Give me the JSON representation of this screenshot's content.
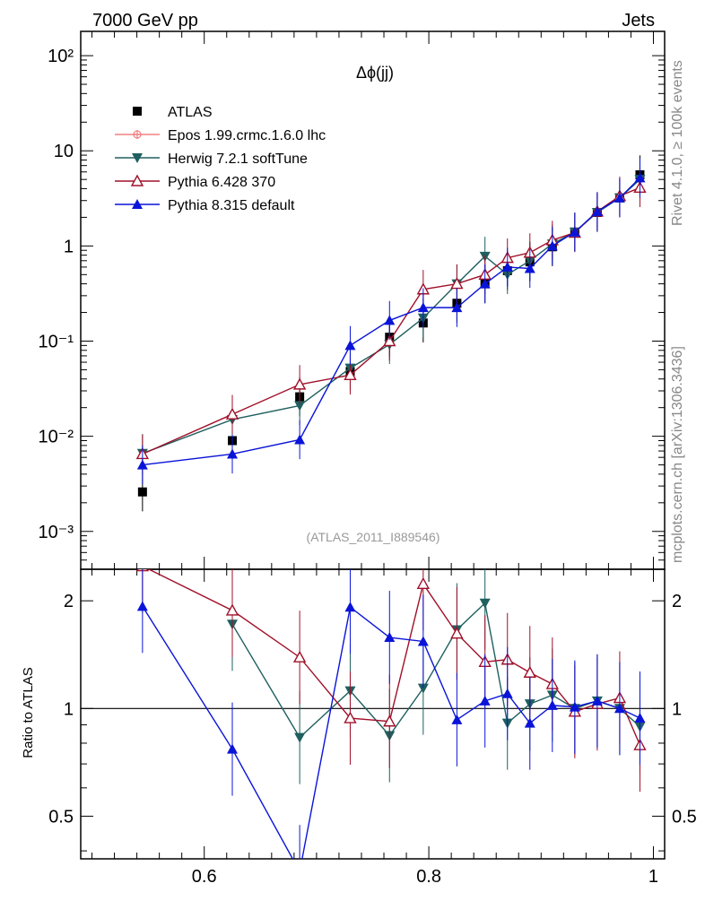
{
  "header": {
    "energy_label": "7000 GeV pp",
    "category_label": "Jets",
    "rivet_label": "Rivet 4.1.0, ≥ 100k events",
    "mcplots_label": "mcplots.cern.ch [arXiv:1306.3436]",
    "analysis_label": "(ATLAS_2011_I889546)"
  },
  "chart_data": [
    {
      "type": "line",
      "panel": "main",
      "title": "Δϕ(jj)",
      "xlabel": "",
      "ylabel": "",
      "xlim": [
        0.49,
        1.01
      ],
      "ylim": [
        0.0004,
        180
      ],
      "yscale": "log",
      "y_tick_labels": [
        "10⁻³",
        "10⁻²",
        "10⁻¹",
        "1",
        "10",
        "10²"
      ],
      "legend_position": "top-left",
      "series": [
        {
          "name": "ATLAS",
          "color": "#000000",
          "marker": "square",
          "x": [
            0.545,
            0.625,
            0.685,
            0.73,
            0.765,
            0.795,
            0.825,
            0.85,
            0.87,
            0.89,
            0.91,
            0.93,
            0.95,
            0.97,
            0.988
          ],
          "y": [
            0.0026,
            0.009,
            0.026,
            0.048,
            0.11,
            0.155,
            0.25,
            0.4,
            0.55,
            0.68,
            0.98,
            1.4,
            2.25,
            3.2,
            5.6
          ]
        },
        {
          "name": "Epos 1.99.crmc.1.6.0 lhc",
          "color": "#f08080",
          "marker": "cross-open",
          "x": [],
          "y": []
        },
        {
          "name": "Herwig 7.2.1 softTune",
          "color": "#1f5f5f",
          "marker": "triangle-down",
          "x": [
            0.545,
            0.625,
            0.685,
            0.73,
            0.765,
            0.795,
            0.825,
            0.85,
            0.87,
            0.89,
            0.91,
            0.93,
            0.95,
            0.97,
            0.988
          ],
          "y": [
            0.0066,
            0.015,
            0.021,
            0.052,
            0.092,
            0.175,
            0.4,
            0.78,
            0.5,
            0.7,
            1.05,
            1.4,
            2.25,
            3.2,
            5.0
          ]
        },
        {
          "name": "Pythia 6.428 370",
          "color": "#a0102a",
          "marker": "triangle-up-open",
          "x": [
            0.545,
            0.625,
            0.685,
            0.73,
            0.765,
            0.795,
            0.825,
            0.85,
            0.87,
            0.89,
            0.91,
            0.93,
            0.95,
            0.97,
            0.988
          ],
          "y": [
            0.0065,
            0.017,
            0.035,
            0.044,
            0.1,
            0.35,
            0.4,
            0.5,
            0.75,
            0.85,
            1.15,
            1.38,
            2.3,
            3.35,
            4.1
          ]
        },
        {
          "name": "Pythia 8.315 default",
          "color": "#0a14d8",
          "marker": "triangle-up",
          "x": [
            0.545,
            0.625,
            0.685,
            0.73,
            0.765,
            0.795,
            0.825,
            0.85,
            0.87,
            0.89,
            0.91,
            0.93,
            0.95,
            0.97,
            0.988
          ],
          "y": [
            0.005,
            0.0065,
            0.0092,
            0.09,
            0.165,
            0.225,
            0.225,
            0.4,
            0.6,
            0.58,
            1.0,
            1.4,
            2.3,
            3.2,
            5.2
          ]
        }
      ]
    },
    {
      "type": "line",
      "panel": "ratio",
      "xlabel": "",
      "ylabel": "Ratio to ATLAS",
      "xlim": [
        0.49,
        1.01
      ],
      "ylim": [
        0.38,
        2.45
      ],
      "yscale": "log",
      "x_tick_labels": [
        "0.6",
        "0.8",
        "1"
      ],
      "y_tick_labels": [
        "0.5",
        "1",
        "2"
      ],
      "reference_line": 1,
      "series": [
        {
          "name": "Herwig 7.2.1 softTune",
          "color": "#1f5f5f",
          "x": [
            0.625,
            0.685,
            0.73,
            0.765,
            0.795,
            0.825,
            0.85,
            0.87,
            0.89,
            0.91,
            0.93,
            0.95,
            0.97,
            0.988
          ],
          "y": [
            1.72,
            0.83,
            1.12,
            0.84,
            1.14,
            1.66,
            1.97,
            0.91,
            1.03,
            1.09,
            1.0,
            1.05,
            1.0,
            0.89
          ]
        },
        {
          "name": "Pythia 6.428 370",
          "color": "#a0102a",
          "x": [
            0.545,
            0.625,
            0.685,
            0.73,
            0.765,
            0.795,
            0.825,
            0.85,
            0.87,
            0.89,
            0.91,
            0.93,
            0.95,
            0.97,
            0.988
          ],
          "y": [
            2.5,
            1.88,
            1.39,
            0.94,
            0.92,
            2.23,
            1.62,
            1.35,
            1.37,
            1.26,
            1.17,
            0.98,
            1.03,
            1.07,
            0.79
          ]
        },
        {
          "name": "Pythia 8.315 default",
          "color": "#0a14d8",
          "x": [
            0.545,
            0.625,
            0.685,
            0.73,
            0.765,
            0.795,
            0.825,
            0.85,
            0.87,
            0.89,
            0.91,
            0.93,
            0.95,
            0.97,
            0.988
          ],
          "y": [
            1.93,
            0.77,
            0.35,
            1.92,
            1.58,
            1.54,
            0.93,
            1.05,
            1.1,
            0.91,
            1.02,
            1.01,
            1.05,
            1.0,
            0.94
          ]
        }
      ]
    }
  ]
}
